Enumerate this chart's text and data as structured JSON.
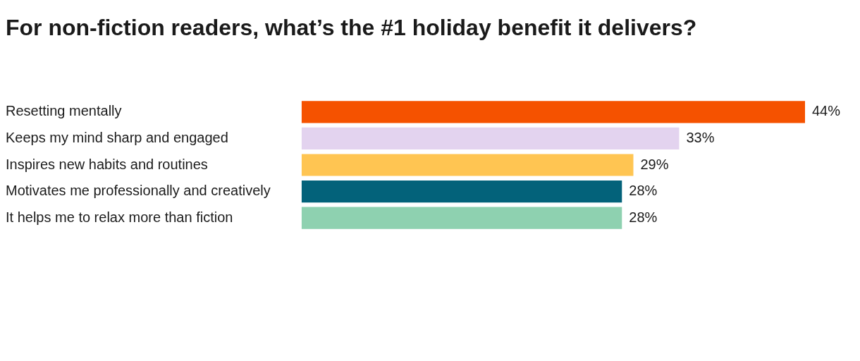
{
  "chart_data": {
    "type": "bar",
    "orientation": "horizontal",
    "title": "For non-fiction readers, what’s the #1 holiday benefit it delivers?",
    "categories": [
      "Resetting mentally",
      "Keeps my mind sharp and engaged",
      "Inspires new habits and routines",
      "Motivates me professionally and creatively",
      "It helps me to relax more than fiction"
    ],
    "values": [
      44,
      33,
      29,
      28,
      28
    ],
    "colors": [
      "#f55200",
      "#e3d3ef",
      "#ffc552",
      "#03627a",
      "#8ed1b0"
    ],
    "value_labels": [
      "44%",
      "33%",
      "29%",
      "28%",
      "28%"
    ],
    "grid": false,
    "legend": false
  }
}
